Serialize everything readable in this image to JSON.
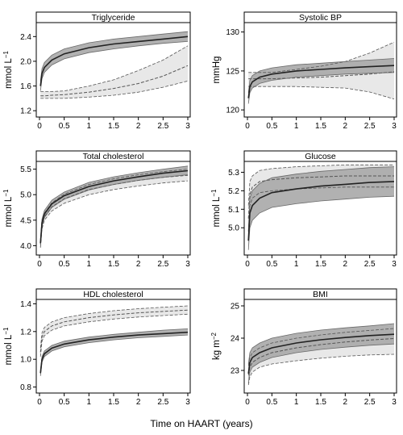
{
  "figure": {
    "xlabel": "Time on HAART (years)"
  },
  "colors": {
    "dark_band": "#a8a8a8",
    "light_band": "#e6e6e6",
    "line": "#222222",
    "dash": "#555555"
  },
  "chart_data": [
    {
      "type": "line",
      "title": "Triglyceride",
      "ylabel": "mmol L",
      "ylabel_sup": "−1",
      "xlim": [
        0,
        3
      ],
      "ylim": [
        1.15,
        2.6
      ],
      "xticks": [
        0,
        0.5,
        1,
        1.5,
        2,
        2.5,
        3
      ],
      "xtick_labels": [
        "0",
        "0.5",
        "1",
        "1.5",
        "2",
        "2.5",
        "3"
      ],
      "yticks": [
        1.2,
        1.6,
        2.0,
        2.4
      ],
      "ytick_labels": [
        "1.2",
        "1.6",
        "2.0",
        "2.4"
      ],
      "x": [
        0.02,
        0.05,
        0.1,
        0.25,
        0.5,
        1,
        1.5,
        2,
        2.5,
        3
      ],
      "series": [
        {
          "style": "solid",
          "band": "dark",
          "y": [
            1.6,
            1.8,
            1.9,
            2.02,
            2.12,
            2.22,
            2.28,
            2.32,
            2.36,
            2.4
          ],
          "lower": [
            1.52,
            1.72,
            1.82,
            1.94,
            2.04,
            2.14,
            2.2,
            2.25,
            2.29,
            2.32
          ],
          "upper": [
            1.68,
            1.88,
            1.98,
            2.1,
            2.2,
            2.3,
            2.36,
            2.4,
            2.44,
            2.48
          ]
        },
        {
          "style": "dashed",
          "band": "light",
          "y": [
            1.44,
            1.44,
            1.44,
            1.45,
            1.46,
            1.5,
            1.56,
            1.64,
            1.76,
            1.93
          ],
          "lower": [
            1.4,
            1.4,
            1.4,
            1.4,
            1.4,
            1.42,
            1.45,
            1.5,
            1.58,
            1.68
          ],
          "upper": [
            1.51,
            1.51,
            1.51,
            1.51,
            1.52,
            1.6,
            1.7,
            1.85,
            2.02,
            2.25
          ]
        }
      ]
    },
    {
      "type": "line",
      "title": "Systolic BP",
      "ylabel": "mmHg",
      "ylabel_sup": "",
      "xlim": [
        0,
        3
      ],
      "ylim": [
        119.5,
        131
      ],
      "xticks": [
        0,
        0.5,
        1,
        1.5,
        2,
        2.5,
        3
      ],
      "xtick_labels": [
        "0",
        "0.5",
        "1",
        "1.5",
        "2",
        "2.5",
        "3"
      ],
      "yticks": [
        120,
        125,
        130
      ],
      "ytick_labels": [
        "120",
        "125",
        "130"
      ],
      "x": [
        0.02,
        0.05,
        0.1,
        0.25,
        0.5,
        1,
        1.5,
        2,
        2.5,
        3
      ],
      "series": [
        {
          "style": "solid",
          "band": "dark",
          "y": [
            121.5,
            123.0,
            123.6,
            124.2,
            124.6,
            125.0,
            125.2,
            125.4,
            125.55,
            125.7
          ],
          "lower": [
            120.8,
            122.2,
            122.8,
            123.4,
            123.8,
            124.2,
            124.4,
            124.6,
            124.7,
            124.8
          ],
          "upper": [
            122.2,
            123.8,
            124.4,
            125.0,
            125.4,
            125.8,
            126.0,
            126.2,
            126.4,
            126.6
          ]
        },
        {
          "style": "dashed",
          "band": "light",
          "y": [
            124.0,
            124.0,
            124.0,
            124.0,
            124.0,
            124.1,
            124.2,
            124.4,
            124.6,
            124.9
          ],
          "lower": [
            123.0,
            123.0,
            123.0,
            123.0,
            123.0,
            123.0,
            122.9,
            122.8,
            122.3,
            121.4
          ],
          "upper": [
            124.8,
            124.8,
            124.8,
            124.8,
            124.8,
            125.2,
            125.6,
            126.2,
            127.3,
            128.7
          ]
        }
      ]
    },
    {
      "type": "line",
      "title": "Total cholesterol",
      "ylabel": "mmol L",
      "ylabel_sup": "−1",
      "xlim": [
        0,
        3
      ],
      "ylim": [
        3.88,
        5.62
      ],
      "xticks": [
        0,
        0.5,
        1,
        1.5,
        2,
        2.5,
        3
      ],
      "xtick_labels": [
        "0",
        "0.5",
        "1",
        "1.5",
        "2",
        "2.5",
        "3"
      ],
      "yticks": [
        4.0,
        4.5,
        5.0,
        5.5
      ],
      "ytick_labels": [
        "4.0",
        "4.5",
        "5.0",
        "5.5"
      ],
      "x": [
        0.02,
        0.05,
        0.1,
        0.25,
        0.5,
        1,
        1.5,
        2,
        2.5,
        3
      ],
      "series": [
        {
          "style": "solid",
          "band": "dark",
          "y": [
            4.05,
            4.45,
            4.62,
            4.82,
            4.98,
            5.16,
            5.27,
            5.35,
            5.42,
            5.47
          ],
          "lower": [
            3.98,
            4.38,
            4.55,
            4.75,
            4.91,
            5.09,
            5.2,
            5.28,
            5.34,
            5.39
          ],
          "upper": [
            4.12,
            4.52,
            4.69,
            4.89,
            5.05,
            5.24,
            5.35,
            5.43,
            5.5,
            5.56
          ]
        },
        {
          "style": "dashed",
          "band": "light",
          "y": [
            4.02,
            4.4,
            4.57,
            4.76,
            4.92,
            5.1,
            5.2,
            5.28,
            5.34,
            5.38
          ],
          "lower": [
            3.96,
            4.33,
            4.5,
            4.68,
            4.83,
            5.0,
            5.1,
            5.17,
            5.23,
            5.27
          ],
          "upper": [
            4.08,
            4.47,
            4.64,
            4.84,
            5.01,
            5.2,
            5.31,
            5.39,
            5.45,
            5.5
          ]
        }
      ]
    },
    {
      "type": "line",
      "title": "Glucose",
      "ylabel": "mmol L",
      "ylabel_sup": "−1",
      "xlim": [
        0,
        3
      ],
      "ylim": [
        4.87,
        5.35
      ],
      "xticks": [
        0,
        0.5,
        1,
        1.5,
        2,
        2.5,
        3
      ],
      "xtick_labels": [
        "0",
        "0.5",
        "1",
        "1.5",
        "2",
        "2.5",
        "3"
      ],
      "yticks": [
        5.0,
        5.1,
        5.2,
        5.3
      ],
      "ytick_labels": [
        "5.0",
        "5.1",
        "5.2",
        "5.3"
      ],
      "x": [
        0.02,
        0.05,
        0.1,
        0.25,
        0.5,
        1,
        1.5,
        2,
        2.5,
        3
      ],
      "series": [
        {
          "style": "solid",
          "band": "dark",
          "y": [
            4.93,
            5.08,
            5.12,
            5.16,
            5.19,
            5.21,
            5.225,
            5.235,
            5.245,
            5.25
          ],
          "lower": [
            4.88,
            5.0,
            5.04,
            5.08,
            5.11,
            5.13,
            5.145,
            5.155,
            5.165,
            5.17
          ],
          "upper": [
            4.98,
            5.16,
            5.2,
            5.24,
            5.27,
            5.29,
            5.305,
            5.315,
            5.325,
            5.33
          ]
        },
        {
          "style": "dashed",
          "band": "light",
          "y": [
            5.05,
            5.18,
            5.22,
            5.25,
            5.26,
            5.27,
            5.275,
            5.28,
            5.28,
            5.28
          ],
          "lower": [
            4.98,
            5.12,
            5.16,
            5.19,
            5.2,
            5.21,
            5.215,
            5.22,
            5.22,
            5.22
          ],
          "upper": [
            5.12,
            5.25,
            5.28,
            5.31,
            5.32,
            5.33,
            5.335,
            5.34,
            5.34,
            5.34
          ]
        }
      ]
    },
    {
      "type": "line",
      "title": "HDL cholesterol",
      "ylabel": "mmol L",
      "ylabel_sup": "−1",
      "xlim": [
        0,
        3
      ],
      "ylim": [
        0.78,
        1.42
      ],
      "xticks": [
        0,
        0.5,
        1,
        1.5,
        2,
        2.5,
        3
      ],
      "xtick_labels": [
        "0",
        "0.5",
        "1",
        "1.5",
        "2",
        "2.5",
        "3"
      ],
      "yticks": [
        0.8,
        1.0,
        1.2,
        1.4
      ],
      "ytick_labels": [
        "0.8",
        "1.0",
        "1.2",
        "1.4"
      ],
      "x": [
        0.02,
        0.05,
        0.1,
        0.25,
        0.5,
        1,
        1.5,
        2,
        2.5,
        3
      ],
      "series": [
        {
          "style": "solid",
          "band": "dark",
          "y": [
            0.9,
            1.0,
            1.04,
            1.08,
            1.11,
            1.14,
            1.16,
            1.175,
            1.185,
            1.195
          ],
          "lower": [
            0.88,
            0.98,
            1.02,
            1.06,
            1.09,
            1.12,
            1.14,
            1.155,
            1.165,
            1.175
          ],
          "upper": [
            0.92,
            1.02,
            1.06,
            1.1,
            1.13,
            1.16,
            1.18,
            1.195,
            1.21,
            1.22
          ]
        },
        {
          "style": "dashed",
          "band": "light",
          "y": [
            1.05,
            1.16,
            1.2,
            1.24,
            1.27,
            1.3,
            1.32,
            1.335,
            1.345,
            1.355
          ],
          "lower": [
            1.02,
            1.13,
            1.17,
            1.21,
            1.24,
            1.27,
            1.29,
            1.305,
            1.315,
            1.325
          ],
          "upper": [
            1.08,
            1.19,
            1.23,
            1.27,
            1.3,
            1.33,
            1.35,
            1.365,
            1.375,
            1.385
          ]
        }
      ]
    },
    {
      "type": "line",
      "title": "BMI",
      "ylabel": "kg m",
      "ylabel_sup": "−2",
      "xlim": [
        0,
        3
      ],
      "ylim": [
        22.4,
        25.15
      ],
      "xticks": [
        0,
        0.5,
        1,
        1.5,
        2,
        2.5,
        3
      ],
      "xtick_labels": [
        "0",
        "0.5",
        "1",
        "1.5",
        "2",
        "2.5",
        "3"
      ],
      "yticks": [
        23,
        24,
        25
      ],
      "ytick_labels": [
        "23",
        "24",
        "25"
      ],
      "x": [
        0.02,
        0.05,
        0.1,
        0.25,
        0.5,
        1,
        1.5,
        2,
        2.5,
        3
      ],
      "series": [
        {
          "style": "solid",
          "band": "dark",
          "y": [
            22.9,
            23.25,
            23.4,
            23.55,
            23.7,
            23.85,
            23.95,
            24.02,
            24.08,
            24.12
          ],
          "lower": [
            22.6,
            22.95,
            23.1,
            23.25,
            23.4,
            23.55,
            23.65,
            23.72,
            23.78,
            23.82
          ],
          "upper": [
            23.2,
            23.55,
            23.7,
            23.85,
            24.0,
            24.15,
            24.25,
            24.32,
            24.38,
            24.45
          ]
        },
        {
          "style": "dashed",
          "band": "light",
          "y": [
            22.85,
            23.1,
            23.25,
            23.4,
            23.55,
            23.7,
            23.8,
            23.88,
            23.94,
            23.99
          ],
          "lower": [
            22.55,
            22.8,
            22.95,
            23.1,
            23.2,
            23.3,
            23.38,
            23.44,
            23.48,
            23.5
          ],
          "upper": [
            23.15,
            23.4,
            23.55,
            23.7,
            23.85,
            24.0,
            24.1,
            24.18,
            24.24,
            24.3
          ]
        }
      ]
    }
  ]
}
